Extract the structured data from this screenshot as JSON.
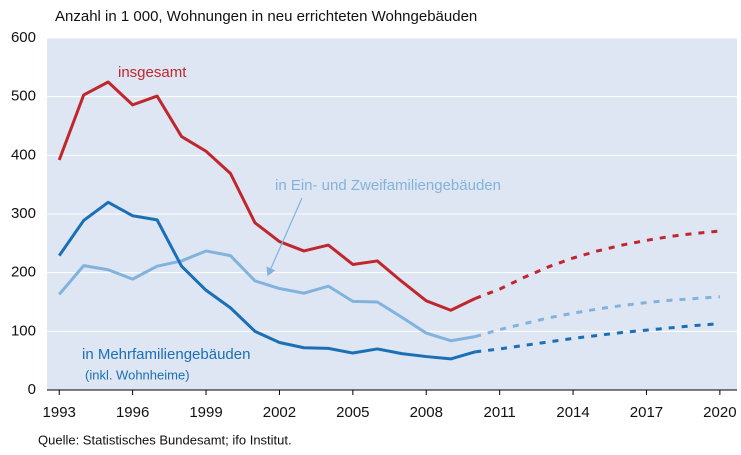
{
  "chart_data": {
    "type": "line",
    "title": "Anzahl in 1 000,  Wohnungen in neu errichteten Wohngebäuden",
    "source": "Quelle: Statistisches Bundesamt; ifo Institut.",
    "x": [
      1993,
      1994,
      1995,
      1996,
      1997,
      1998,
      1999,
      2000,
      2001,
      2002,
      2003,
      2004,
      2005,
      2006,
      2007,
      2008,
      2009,
      2010,
      2011,
      2012,
      2013,
      2014,
      2015,
      2016,
      2017,
      2018,
      2019,
      2020
    ],
    "xlim": [
      1992.5,
      2020.7
    ],
    "xticks": [
      1993,
      1996,
      1999,
      2002,
      2005,
      2008,
      2011,
      2014,
      2017,
      2020
    ],
    "ylim": [
      0,
      600
    ],
    "yticks": [
      0,
      100,
      200,
      300,
      400,
      500,
      600
    ],
    "grid": true,
    "background": "#dde6f2",
    "series": [
      {
        "name": "insgesamt",
        "color": "#c0272d",
        "line_style": "solid",
        "values": [
          392,
          503,
          525,
          486,
          501,
          432,
          407,
          369,
          285,
          253,
          237,
          247,
          214,
          220,
          185,
          152,
          136,
          156,
          null,
          null,
          null,
          null,
          null,
          null,
          null,
          null,
          null,
          null
        ]
      },
      {
        "name": "in Ein- und Zweifamiliengebäuden",
        "color": "#82b3dc",
        "line_style": "solid",
        "values": [
          163,
          212,
          205,
          189,
          211,
          220,
          237,
          229,
          186,
          173,
          165,
          177,
          151,
          150,
          124,
          97,
          84,
          91,
          null,
          null,
          null,
          null,
          null,
          null,
          null,
          null,
          null,
          null
        ]
      },
      {
        "name": "in Mehrfamiliengebäuden",
        "note": "(inkl. Wohnheime)",
        "color": "#1b6fb5",
        "line_style": "solid",
        "values": [
          229,
          289,
          320,
          297,
          290,
          211,
          170,
          140,
          100,
          81,
          72,
          71,
          63,
          70,
          62,
          57,
          53,
          65,
          null,
          null,
          null,
          null,
          null,
          null,
          null,
          null,
          null,
          null
        ]
      },
      {
        "color": "#c0272d",
        "line_style": "dashed",
        "values": [
          null,
          null,
          null,
          null,
          null,
          null,
          null,
          null,
          null,
          null,
          null,
          null,
          null,
          null,
          null,
          null,
          null,
          156,
          172,
          192,
          210,
          225,
          237,
          247,
          255,
          262,
          267,
          271
        ]
      },
      {
        "color": "#82b3dc",
        "line_style": "dashed",
        "values": [
          null,
          null,
          null,
          null,
          null,
          null,
          null,
          null,
          null,
          null,
          null,
          null,
          null,
          null,
          null,
          null,
          null,
          91,
          103,
          113,
          123,
          131,
          138,
          144,
          149,
          153,
          156,
          159
        ]
      },
      {
        "color": "#1b6fb5",
        "line_style": "dashed",
        "values": [
          null,
          null,
          null,
          null,
          null,
          null,
          null,
          null,
          null,
          null,
          null,
          null,
          null,
          null,
          null,
          null,
          null,
          65,
          70,
          76,
          82,
          88,
          93,
          98,
          102,
          106,
          110,
          113
        ]
      }
    ]
  }
}
